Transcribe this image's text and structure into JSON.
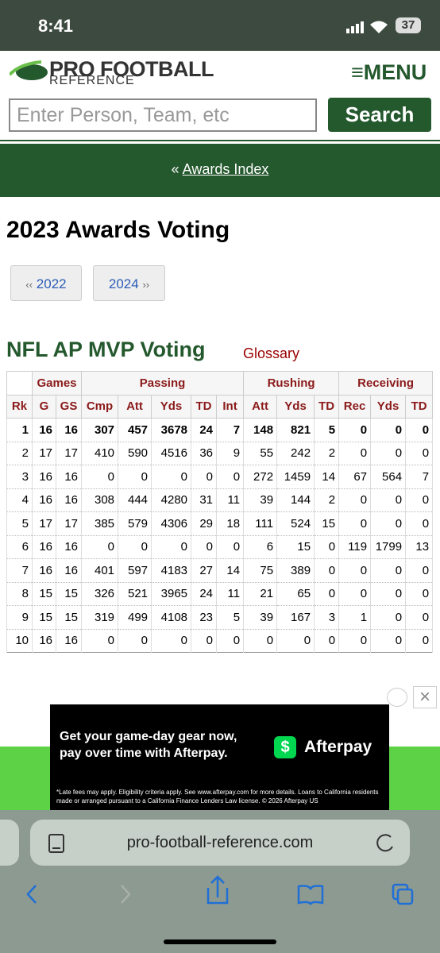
{
  "status": {
    "time": "8:41",
    "battery": "37"
  },
  "header": {
    "logo_top": "PRO FOOTBALL",
    "logo_bottom": "REFERENCE",
    "menu": "MENU",
    "search_placeholder": "Enter Person, Team, etc",
    "search_button": "Search"
  },
  "nav": {
    "prefix": "«",
    "link": "Awards Index"
  },
  "page_title": "2023 Awards Voting",
  "pager": {
    "prev_arrow": "‹‹",
    "prev": "2022",
    "next": "2024",
    "next_arrow": "››"
  },
  "section": {
    "title": "NFL AP MVP Voting",
    "glossary": "Glossary"
  },
  "table": {
    "groups": [
      "Games",
      "Passing",
      "Rushing",
      "Receiving"
    ],
    "columns": [
      "Rk",
      "G",
      "GS",
      "Cmp",
      "Att",
      "Yds",
      "TD",
      "Int",
      "Att",
      "Yds",
      "TD",
      "Rec",
      "Yds",
      "TD"
    ],
    "rows": [
      [
        1,
        16,
        16,
        307,
        457,
        3678,
        24,
        7,
        148,
        821,
        5,
        0,
        0,
        0
      ],
      [
        2,
        17,
        17,
        410,
        590,
        4516,
        36,
        9,
        55,
        242,
        2,
        0,
        0,
        0
      ],
      [
        3,
        16,
        16,
        0,
        0,
        0,
        0,
        0,
        272,
        1459,
        14,
        67,
        564,
        7
      ],
      [
        4,
        16,
        16,
        308,
        444,
        4280,
        31,
        11,
        39,
        144,
        2,
        0,
        0,
        0
      ],
      [
        5,
        17,
        17,
        385,
        579,
        4306,
        29,
        18,
        111,
        524,
        15,
        0,
        0,
        0
      ],
      [
        6,
        16,
        16,
        0,
        0,
        0,
        0,
        0,
        6,
        15,
        0,
        119,
        1799,
        13
      ],
      [
        7,
        16,
        16,
        401,
        597,
        4183,
        27,
        14,
        75,
        389,
        0,
        0,
        0,
        0
      ],
      [
        8,
        15,
        15,
        326,
        521,
        3965,
        24,
        11,
        21,
        65,
        0,
        0,
        0,
        0
      ],
      [
        9,
        15,
        15,
        319,
        499,
        4108,
        23,
        5,
        39,
        167,
        3,
        1,
        0,
        0
      ],
      [
        10,
        16,
        16,
        0,
        0,
        0,
        0,
        0,
        0,
        0,
        0,
        0,
        0,
        0
      ]
    ]
  },
  "ad": {
    "headline": "Get your game-day gear now, pay over time with Afterpay.",
    "brand": "Afterpay",
    "disclaimer": "*Late fees may apply. Eligibility criteria apply. See www.afterpay.com for more details. Loans to California residents made or arranged pursuant to a California Finance Lenders Law license. © 2026 Afterpay US"
  },
  "browser": {
    "url": "pro-football-reference.com"
  }
}
